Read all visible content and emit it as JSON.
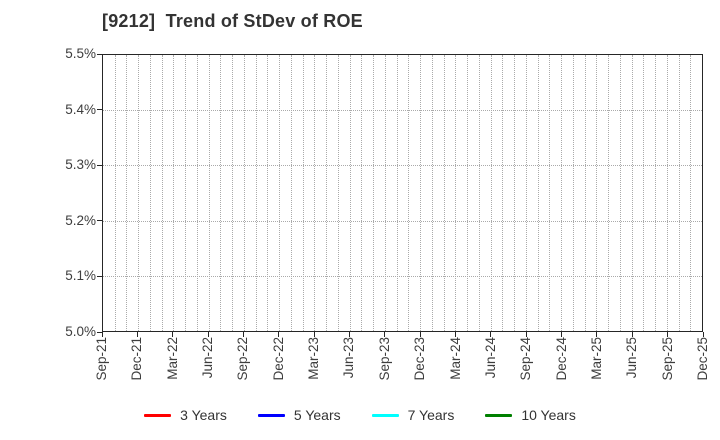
{
  "title": "[9212]  Trend of StDev of ROE",
  "chart_data": {
    "type": "line",
    "title": "[9212]  Trend of StDev of ROE",
    "xlabel": "",
    "ylabel": "",
    "x_tick_labels": [
      "Sep-21",
      "Dec-21",
      "Mar-22",
      "Jun-22",
      "Sep-22",
      "Dec-22",
      "Mar-23",
      "Jun-23",
      "Sep-23",
      "Dec-23",
      "Mar-24",
      "Jun-24",
      "Sep-24",
      "Dec-24",
      "Mar-25",
      "Jun-25",
      "Sep-25",
      "Dec-25"
    ],
    "x_tick_interval": "quarterly",
    "x_minor_gridlines": "monthly",
    "y_tick_labels": [
      "5.5%",
      "5.4%",
      "5.3%",
      "5.2%",
      "5.1%",
      "5.0%"
    ],
    "ylim": [
      5.0,
      5.5
    ],
    "y_unit": "%",
    "grid": true,
    "grid_style": "dotted",
    "legend_position": "bottom-center",
    "series": [
      {
        "name": "3 Years",
        "color": "#ff0000",
        "values": []
      },
      {
        "name": "5 Years",
        "color": "#0000ff",
        "values": []
      },
      {
        "name": "7 Years",
        "color": "#00ffff",
        "values": []
      },
      {
        "name": "10 Years",
        "color": "#008000",
        "values": []
      }
    ],
    "note": "Plot area is empty - no data lines are drawn for any series"
  },
  "legend": {
    "items": [
      {
        "label": "3 Years",
        "color": "#ff0000"
      },
      {
        "label": "5 Years",
        "color": "#0000ff"
      },
      {
        "label": "7 Years",
        "color": "#00ffff"
      },
      {
        "label": "10 Years",
        "color": "#008000"
      }
    ]
  },
  "colors": {
    "background": "#ffffff",
    "plot_border": "#262626",
    "gridline": "#aaaaaa",
    "title_text": "#333333",
    "tick_text": "#3d3d3d"
  }
}
